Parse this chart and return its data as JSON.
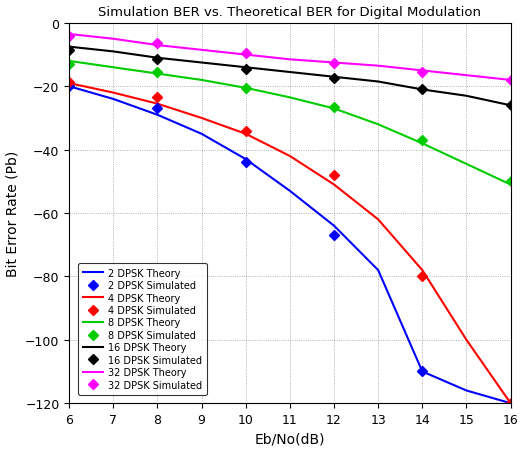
{
  "title": "Simulation BER vs. Theoretical BER for Digital Modulation",
  "xlabel": "Eb/No(dB)",
  "ylabel": "Bit Error Rate (Pb)",
  "xlim": [
    6,
    16
  ],
  "ylim": [
    -120,
    0
  ],
  "xticks": [
    6,
    7,
    8,
    9,
    10,
    11,
    12,
    13,
    14,
    15,
    16
  ],
  "yticks": [
    0,
    -20,
    -40,
    -60,
    -80,
    -100,
    -120
  ],
  "background_color": "#ffffff",
  "grid_color": "#999999",
  "series": {
    "2dpsk_theory": {
      "label": "2 DPSK Theory",
      "color": "#0000ff",
      "linestyle": "-",
      "marker": null,
      "x": [
        6,
        7,
        8,
        9,
        10,
        11,
        12,
        13,
        14,
        15,
        16
      ],
      "y": [
        -20.0,
        -24.0,
        -29.0,
        -35.0,
        -43.0,
        -53.0,
        -64.0,
        -78.0,
        -110.0,
        -116.0,
        -120.0
      ]
    },
    "2dpsk_sim": {
      "label": "2 DPSK Simulated",
      "color": "#0000ff",
      "linestyle": "none",
      "marker": "D",
      "x": [
        6,
        8,
        10,
        12,
        14
      ],
      "y": [
        -20.0,
        -27.0,
        -44.0,
        -67.0,
        -110.0
      ]
    },
    "4dpsk_theory": {
      "label": "4 DPSK Theory",
      "color": "#ff0000",
      "linestyle": "-",
      "marker": null,
      "x": [
        6,
        7,
        8,
        9,
        10,
        11,
        12,
        13,
        14,
        15,
        16
      ],
      "y": [
        -19.0,
        -22.0,
        -25.5,
        -30.0,
        -35.0,
        -42.0,
        -51.0,
        -62.0,
        -78.0,
        -100.0,
        -120.0
      ]
    },
    "4dpsk_sim": {
      "label": "4 DPSK Simulated",
      "color": "#ff0000",
      "linestyle": "none",
      "marker": "D",
      "x": [
        6,
        8,
        10,
        12,
        14,
        16
      ],
      "y": [
        -18.5,
        -23.5,
        -34.0,
        -48.0,
        -80.0,
        -120.0
      ]
    },
    "8dpsk_theory": {
      "label": "8 DPSK Theory",
      "color": "#00cc00",
      "linestyle": "-",
      "marker": null,
      "x": [
        6,
        7,
        8,
        9,
        10,
        11,
        12,
        13,
        14,
        15,
        16
      ],
      "y": [
        -12.0,
        -14.0,
        -16.0,
        -18.0,
        -20.5,
        -23.5,
        -27.0,
        -32.0,
        -38.0,
        -44.5,
        -51.0
      ]
    },
    "8dpsk_sim": {
      "label": "8 DPSK Simulated",
      "color": "#00cc00",
      "linestyle": "none",
      "marker": "D",
      "x": [
        6,
        8,
        10,
        12,
        14,
        16
      ],
      "y": [
        -13.0,
        -15.5,
        -20.5,
        -26.5,
        -37.0,
        -50.0
      ]
    },
    "16dpsk_theory": {
      "label": "16 DPSK Theory",
      "color": "#000000",
      "linestyle": "-",
      "marker": null,
      "x": [
        6,
        7,
        8,
        9,
        10,
        11,
        12,
        13,
        14,
        15,
        16
      ],
      "y": [
        -7.5,
        -9.0,
        -11.0,
        -12.5,
        -14.0,
        -15.5,
        -17.0,
        -18.5,
        -21.0,
        -23.0,
        -26.0
      ]
    },
    "16dpsk_sim": {
      "label": "16 DPSK Simulated",
      "color": "#000000",
      "linestyle": "none",
      "marker": "D",
      "x": [
        6,
        8,
        10,
        12,
        14,
        16
      ],
      "y": [
        -8.5,
        -11.5,
        -14.5,
        -17.5,
        -21.0,
        -26.0
      ]
    },
    "32dpsk_theory": {
      "label": "32 DPSK Theory",
      "color": "#ff00ff",
      "linestyle": "-",
      "marker": null,
      "x": [
        6,
        7,
        8,
        9,
        10,
        11,
        12,
        13,
        14,
        15,
        16
      ],
      "y": [
        -3.5,
        -5.0,
        -7.0,
        -8.5,
        -10.0,
        -11.5,
        -12.5,
        -13.5,
        -15.0,
        -16.5,
        -18.0
      ]
    },
    "32dpsk_sim": {
      "label": "32 DPSK Simulated",
      "color": "#ff00ff",
      "linestyle": "none",
      "marker": "D",
      "x": [
        6,
        8,
        10,
        12,
        14,
        16
      ],
      "y": [
        -4.0,
        -6.5,
        -9.5,
        -12.5,
        -15.5,
        -18.0
      ]
    }
  }
}
